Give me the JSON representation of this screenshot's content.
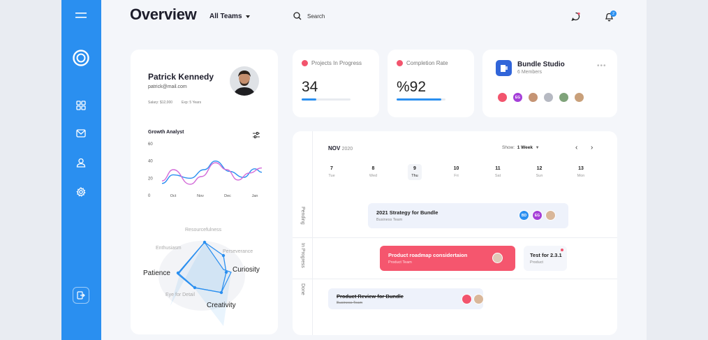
{
  "header": {
    "title": "Overview",
    "teams_label": "All Teams",
    "search_label": "Search",
    "notification_count": "2"
  },
  "profile": {
    "name": "Patrick Kennedy",
    "email": "patrick@mail.com",
    "salary": "Salary: $12,000",
    "experience": "Exp: 5 Years",
    "chart_title": "Growth Analyst"
  },
  "chart_data": {
    "type": "line",
    "title": "Growth Analyst",
    "categories": [
      "Oct",
      "Nov",
      "Dec",
      "Jan"
    ],
    "y_ticks": [
      "60",
      "40",
      "20",
      "0"
    ],
    "ylim": [
      0,
      60
    ],
    "series": [
      {
        "color": "#2a8ff0",
        "x": [
          0,
          0.4,
          1,
          1.5,
          1.9,
          2.4,
          2.9,
          3.3,
          3.55
        ],
        "y": [
          14,
          24,
          20,
          30,
          40,
          28,
          21,
          31,
          27
        ]
      },
      {
        "color": "#d36bd8",
        "x": [
          0,
          0.4,
          1,
          1.4,
          1.9,
          2.3,
          2.7,
          3.1,
          3.55
        ],
        "y": [
          17,
          30,
          13,
          22,
          38,
          30,
          18,
          26,
          32
        ]
      }
    ]
  },
  "skills": {
    "labels": {
      "resourcefulness": "Resourcefulness",
      "perseverance": "Perseverance",
      "curiosity": "Curiosity",
      "creativity": "Creativity",
      "eye": "Eye for Detail",
      "patience": "Patience",
      "enthusiasm": "Enthusiasm"
    }
  },
  "stats": [
    {
      "label": "Projects In Progress",
      "value": "34",
      "color": "#f2546d",
      "progress": 0.3
    },
    {
      "label": "Completion Rate",
      "value": "%92",
      "color": "#f2546d",
      "progress": 0.92
    }
  ],
  "team": {
    "name": "Bundle Studio",
    "members": "6 Members",
    "menu_icon": "more-dots-icon"
  },
  "calendar": {
    "month": "NOV",
    "year": "2020",
    "show_label": "Show:",
    "show_value": "1 Week",
    "days": [
      {
        "num": "7",
        "wd": "Tue"
      },
      {
        "num": "8",
        "wd": "Wed"
      },
      {
        "num": "9",
        "wd": "Thu"
      },
      {
        "num": "10",
        "wd": "Fri"
      },
      {
        "num": "11",
        "wd": "Sat"
      },
      {
        "num": "12",
        "wd": "Sun"
      },
      {
        "num": "13",
        "wd": "Mon"
      }
    ],
    "rows": {
      "pending": "Pending",
      "progress": "In Progress",
      "done": "Done"
    },
    "tasks": {
      "t1": {
        "title": "2021 Strategy for Bundle",
        "sub": "Business Team",
        "badges": [
          "BD",
          "EG"
        ]
      },
      "t2": {
        "title": "Product roadmap considertaion",
        "sub": "Product Team"
      },
      "t3": {
        "title": "Test for 2.3.1",
        "sub": "Product"
      },
      "t4": {
        "title": "Product Review for Bundle",
        "sub": "Business Team"
      }
    }
  },
  "colors": {
    "accent": "#2a8ff0",
    "red": "#f2546d",
    "purple": "#a53fd8",
    "pink": "#d36bd8"
  }
}
